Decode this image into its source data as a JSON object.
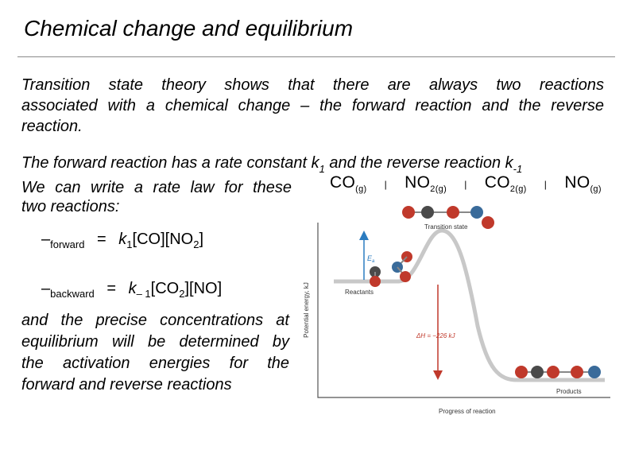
{
  "slide": {
    "title": "Chemical change and equilibrium",
    "para1": [
      "Transition state theory shows that there are always two reactions",
      "associated with a chemical change – the forward reaction and the reverse",
      "reaction."
    ],
    "line2_a": "The forward reaction has a rate constant k",
    "line2_sub1": "1",
    "line2_b": " and the reverse reaction k",
    "line2_sub2": "-1",
    "line3": "We can write a rate law for these",
    "line4": "two reactions:",
    "eq1": {
      "lhs_symbol": "–",
      "lhs_sub": "forward",
      "equals": "=",
      "k": "k",
      "k_sub": "1",
      "conc1": "[CO]",
      "conc2_open": "[NO",
      "conc2_sub": "2",
      "conc2_close": "]"
    },
    "eq2": {
      "lhs_symbol": "–",
      "lhs_sub": "backward",
      "equals": "=",
      "k": "k",
      "k_sub": "– 1",
      "conc1_open": "[CO",
      "conc1_sub": "2",
      "conc1_close": "]",
      "conc2": "[NO]"
    },
    "conclusion": [
      "and the precise concentrations at",
      "equilibrium will be determined by",
      "the activation energies for the",
      "forward and reverse reactions"
    ]
  },
  "reaction_equation": {
    "r1": "CO",
    "r1_state": "(g)",
    "r2": "NO",
    "r2_sub": "2",
    "r2_state": "(g)",
    "p1": "CO",
    "p1_sub": "2",
    "p1_state": "(g)",
    "p2": "NO",
    "p2_state": "(g)"
  },
  "figure": {
    "transition_state_label": "Transition state",
    "ea_label": "E",
    "ea_sub": "a",
    "reactants_label": "Reactants",
    "delta_h_label": "ΔH = −226 kJ",
    "products_label": "Products",
    "x_axis_label": "Progress of reaction",
    "y_axis_label": "Potential energy, kJ",
    "colors": {
      "curve": "#c8c8c8",
      "frame": "#555555",
      "ea_arrow": "#2b7cc0",
      "delta_h_arrow": "#c0392b",
      "oxygen": "#c0392b",
      "carbon": "#4a4a4a",
      "nitrogen": "#3a6b9a"
    }
  }
}
